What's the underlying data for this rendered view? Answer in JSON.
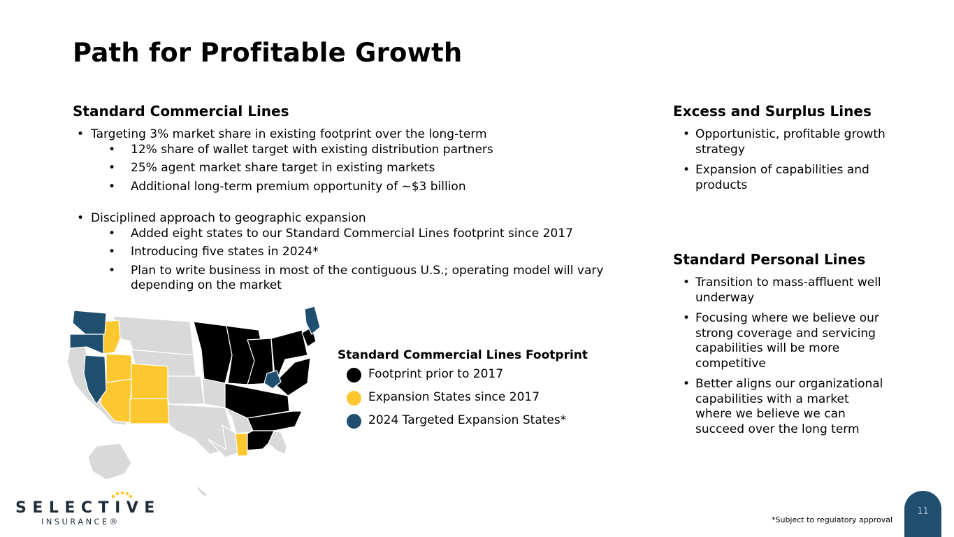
{
  "slide": {
    "title": "Path for Profitable Growth",
    "page_number": "11",
    "footnote": "*Subject to regulatory approval"
  },
  "commercial": {
    "heading": "Standard Commercial Lines",
    "groups": [
      {
        "text": "Targeting 3% market share in existing footprint over the long-term",
        "subs": [
          "12% share of wallet target with existing distribution partners",
          "25% agent market share target in existing markets",
          "Additional long-term premium opportunity of ~$3 billion"
        ]
      },
      {
        "text": "Disciplined approach to geographic expansion",
        "subs": [
          "Added eight states to our Standard Commercial Lines footprint since 2017",
          "Introducing five states in 2024*",
          "Plan to write business in most of the contiguous U.S.; operating model will vary depending on the market"
        ]
      }
    ]
  },
  "excess": {
    "heading": "Excess and Surplus Lines",
    "bullets": [
      "Opportunistic, profitable growth strategy",
      "Expansion of capabilities and products"
    ]
  },
  "personal": {
    "heading": "Standard Personal Lines",
    "bullets": [
      "Transition to mass-affluent well underway",
      "Focusing where we believe our strong coverage and servicing capabilities will be more competitive",
      "Better aligns our organizational capabilities with a market where we believe we can succeed over the long term"
    ]
  },
  "legend": {
    "title": "Standard Commercial Lines Footprint",
    "items": [
      {
        "label": "Footprint prior to 2017",
        "color": "#000000"
      },
      {
        "label": "Expansion States since 2017",
        "color": "#fdc82f"
      },
      {
        "label": "2024 Targeted Expansion States*",
        "color": "#1f4e6f"
      }
    ]
  },
  "map_colors": {
    "other": "#d9d9d9",
    "prior": "#000000",
    "expansion": "#fdc82f",
    "targeted": "#1f4e6f"
  },
  "logo": {
    "word": "SELECTIVE",
    "sub": "INSURANCE®",
    "dots_color": "#fdc82f"
  }
}
